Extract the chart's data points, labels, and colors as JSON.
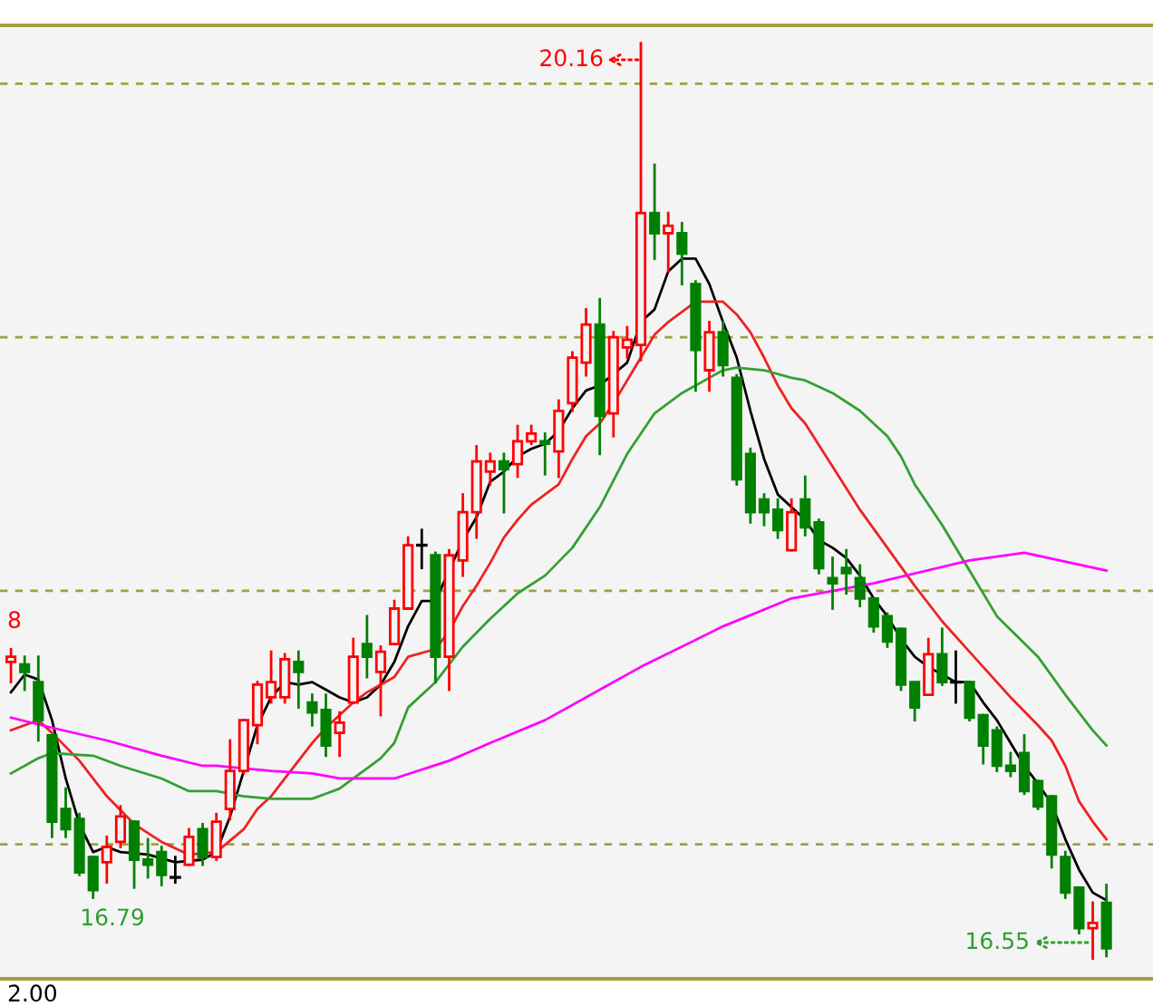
{
  "chart_data": {
    "type": "candlestick",
    "categories": [
      null,
      null,
      null,
      null,
      null,
      null,
      null,
      null,
      null,
      null,
      null,
      null,
      null,
      null,
      null,
      null,
      null,
      null,
      null,
      null,
      null,
      null,
      null,
      null,
      null,
      null,
      null,
      null,
      null,
      null,
      null,
      null,
      null,
      null,
      null,
      null,
      null,
      null,
      null,
      null,
      null,
      null,
      null,
      null,
      null,
      null,
      null,
      null,
      null,
      null,
      null,
      null,
      null,
      null,
      null,
      null,
      null,
      null,
      null,
      null,
      null,
      null,
      null,
      null,
      null,
      null,
      null,
      null,
      null,
      null,
      null,
      null,
      null,
      null,
      null,
      null,
      null,
      null,
      null,
      null,
      null
    ],
    "ohlc": [
      [
        17.72,
        17.77,
        17.64,
        17.74
      ],
      [
        17.71,
        17.74,
        17.61,
        17.68
      ],
      [
        17.64,
        17.74,
        17.41,
        17.49
      ],
      [
        17.43,
        17.43,
        17.03,
        17.09
      ],
      [
        17.14,
        17.22,
        17.03,
        17.06
      ],
      [
        17.1,
        17.12,
        16.88,
        16.89
      ],
      [
        16.95,
        16.95,
        16.79,
        16.82
      ],
      [
        16.93,
        17.03,
        16.85,
        16.99
      ],
      [
        17.01,
        17.15,
        16.99,
        17.11
      ],
      [
        17.09,
        17.09,
        16.83,
        16.94
      ],
      [
        16.94,
        17.02,
        16.87,
        16.92
      ],
      [
        16.97,
        16.99,
        16.84,
        16.88
      ],
      [
        16.87,
        16.95,
        16.85,
        16.87
      ],
      [
        16.92,
        17.06,
        16.92,
        17.03
      ],
      [
        17.06,
        17.08,
        16.92,
        16.95
      ],
      [
        16.95,
        17.12,
        16.94,
        17.09
      ],
      [
        17.14,
        17.41,
        17.1,
        17.29
      ],
      [
        17.29,
        17.49,
        17.28,
        17.49
      ],
      [
        17.47,
        17.64,
        17.4,
        17.63
      ],
      [
        17.58,
        17.76,
        17.56,
        17.64
      ],
      [
        17.58,
        17.75,
        17.56,
        17.73
      ],
      [
        17.72,
        17.76,
        17.54,
        17.68
      ],
      [
        17.56,
        17.59,
        17.47,
        17.52
      ],
      [
        17.53,
        17.59,
        17.35,
        17.39
      ],
      [
        17.44,
        17.52,
        17.35,
        17.48
      ],
      [
        17.56,
        17.81,
        17.56,
        17.74
      ],
      [
        17.79,
        17.9,
        17.66,
        17.74
      ],
      [
        17.68,
        17.78,
        17.51,
        17.76
      ],
      [
        17.79,
        17.96,
        17.79,
        17.93
      ],
      [
        17.93,
        18.21,
        17.93,
        18.18
      ],
      [
        18.18,
        18.24,
        18.09,
        18.18
      ],
      [
        18.14,
        18.15,
        17.64,
        17.74
      ],
      [
        17.74,
        18.16,
        17.61,
        18.14
      ],
      [
        18.12,
        18.38,
        18.06,
        18.31
      ],
      [
        18.31,
        18.57,
        18.21,
        18.51
      ],
      [
        18.47,
        18.54,
        18.42,
        18.51
      ],
      [
        18.51,
        18.54,
        18.31,
        18.48
      ],
      [
        18.5,
        18.65,
        18.45,
        18.59
      ],
      [
        18.59,
        18.65,
        18.58,
        18.62
      ],
      [
        18.59,
        18.62,
        18.46,
        18.58
      ],
      [
        18.55,
        18.75,
        18.45,
        18.71
      ],
      [
        18.74,
        18.94,
        18.71,
        18.92
      ],
      [
        18.9,
        19.11,
        18.85,
        19.05
      ],
      [
        19.05,
        19.15,
        18.54,
        18.69
      ],
      [
        18.7,
        19.02,
        18.61,
        19.0
      ],
      [
        18.96,
        19.04,
        18.92,
        18.99
      ],
      [
        18.97,
        20.16,
        18.91,
        19.49
      ],
      [
        19.49,
        19.68,
        19.31,
        19.41
      ],
      [
        19.41,
        19.49,
        19.26,
        19.44
      ],
      [
        19.41,
        19.45,
        19.21,
        19.33
      ],
      [
        19.21,
        19.22,
        18.79,
        18.95
      ],
      [
        18.87,
        19.06,
        18.79,
        19.02
      ],
      [
        19.02,
        19.06,
        18.85,
        18.89
      ],
      [
        18.84,
        18.85,
        18.42,
        18.44
      ],
      [
        18.54,
        18.56,
        18.27,
        18.31
      ],
      [
        18.36,
        18.38,
        18.26,
        18.31
      ],
      [
        18.32,
        18.36,
        18.21,
        18.24
      ],
      [
        18.16,
        18.36,
        18.16,
        18.31
      ],
      [
        18.36,
        18.45,
        18.22,
        18.25
      ],
      [
        18.27,
        18.28,
        18.07,
        18.09
      ],
      [
        18.05,
        18.13,
        17.93,
        18.03
      ],
      [
        18.09,
        18.16,
        17.99,
        18.07
      ],
      [
        18.05,
        18.1,
        17.94,
        17.97
      ],
      [
        17.97,
        17.97,
        17.84,
        17.86
      ],
      [
        17.9,
        17.91,
        17.78,
        17.8
      ],
      [
        17.85,
        17.85,
        17.61,
        17.63
      ],
      [
        17.64,
        17.64,
        17.49,
        17.54
      ],
      [
        17.59,
        17.81,
        17.59,
        17.75
      ],
      [
        17.75,
        17.85,
        17.63,
        17.64
      ],
      [
        17.64,
        17.76,
        17.56,
        17.64
      ],
      [
        17.64,
        17.64,
        17.49,
        17.5
      ],
      [
        17.51,
        17.51,
        17.32,
        17.39
      ],
      [
        17.45,
        17.46,
        17.29,
        17.31
      ],
      [
        17.31,
        17.36,
        17.27,
        17.29
      ],
      [
        17.36,
        17.43,
        17.2,
        17.21
      ],
      [
        17.25,
        17.25,
        17.14,
        17.15
      ],
      [
        17.19,
        17.19,
        16.91,
        16.96
      ],
      [
        16.95,
        16.97,
        16.79,
        16.81
      ],
      [
        16.83,
        16.83,
        16.65,
        16.67
      ],
      [
        16.67,
        16.77,
        16.55,
        16.69
      ],
      [
        16.77,
        16.84,
        16.56,
        16.59
      ]
    ],
    "colors": [
      "#ff0000",
      "#008000",
      "#008000",
      "#008000",
      "#008000",
      "#008000",
      "#008000",
      "#ff0000",
      "#ff0000",
      "#008000",
      "#008000",
      "#008000",
      "#000000",
      "#ff0000",
      "#008000",
      "#ff0000",
      "#ff0000",
      "#ff0000",
      "#ff0000",
      "#ff0000",
      "#ff0000",
      "#008000",
      "#008000",
      "#008000",
      "#ff0000",
      "#ff0000",
      "#008000",
      "#ff0000",
      "#ff0000",
      "#ff0000",
      "#000000",
      "#008000",
      "#ff0000",
      "#ff0000",
      "#ff0000",
      "#ff0000",
      "#008000",
      "#ff0000",
      "#ff0000",
      "#008000",
      "#ff0000",
      "#ff0000",
      "#ff0000",
      "#008000",
      "#ff0000",
      "#ff0000",
      "#ff0000",
      "#008000",
      "#ff0000",
      "#008000",
      "#008000",
      "#ff0000",
      "#008000",
      "#008000",
      "#008000",
      "#008000",
      "#008000",
      "#ff0000",
      "#008000",
      "#008000",
      "#008000",
      "#008000",
      "#008000",
      "#008000",
      "#008000",
      "#008000",
      "#008000",
      "#ff0000",
      "#008000",
      "#000000",
      "#008000",
      "#008000",
      "#008000",
      "#008000",
      "#008000",
      "#008000",
      "#008000",
      "#008000",
      "#008000",
      "#ff0000",
      "#008000"
    ],
    "series": [
      {
        "type": "line",
        "color": "#000000",
        "values": [
          17.6,
          17.67,
          17.65,
          17.49,
          17.26,
          17.08,
          16.97,
          16.99,
          16.97,
          null,
          16.96,
          null,
          16.93,
          null,
          16.94,
          16.97,
          17.11,
          17.29,
          17.47,
          17.58,
          17.64,
          17.63,
          17.64,
          17.61,
          17.58,
          17.56,
          17.58,
          17.63,
          17.72,
          17.86,
          17.96,
          17.96,
          null,
          18.2,
          18.29,
          18.43,
          18.47,
          18.53,
          18.56,
          18.58,
          18.63,
          18.72,
          18.79,
          18.81,
          null,
          18.9,
          19.06,
          19.11,
          19.26,
          19.31,
          19.31,
          19.21,
          19.06,
          18.92,
          18.71,
          18.52,
          18.38,
          18.33,
          18.28,
          18.2,
          18.17,
          18.13,
          18.06,
          17.97,
          17.9,
          17.81,
          17.74,
          17.7,
          17.67,
          17.64,
          17.64,
          17.56,
          17.49,
          17.4,
          17.31,
          17.24,
          17.16,
          17.02,
          16.9,
          16.81,
          16.78
        ]
      },
      {
        "type": "line",
        "color": "#ee2222",
        "values": [
          17.45,
          null,
          17.49,
          17.44,
          null,
          17.33,
          null,
          17.19,
          null,
          17.08,
          null,
          17.01,
          null,
          16.96,
          null,
          16.97,
          null,
          17.06,
          17.14,
          17.19,
          17.26,
          17.33,
          17.4,
          17.46,
          17.51,
          17.56,
          17.6,
          17.63,
          17.66,
          17.74,
          null,
          17.77,
          17.84,
          17.94,
          18.02,
          18.11,
          18.21,
          18.28,
          18.34,
          18.38,
          18.42,
          18.52,
          18.61,
          18.66,
          18.74,
          18.83,
          18.92,
          19.01,
          19.06,
          19.1,
          19.14,
          19.14,
          19.14,
          19.09,
          19.02,
          18.92,
          18.81,
          18.72,
          18.66,
          null,
          18.49,
          null,
          18.32,
          null,
          18.17,
          null,
          18.02,
          null,
          17.88,
          null,
          17.76,
          17.7,
          null,
          17.58,
          null,
          17.47,
          17.41,
          17.31,
          17.17,
          17.09,
          17.02
        ]
      },
      {
        "type": "line",
        "color": "#33a033",
        "values": [
          17.28,
          null,
          17.34,
          17.36,
          null,
          null,
          17.35,
          null,
          17.31,
          null,
          null,
          17.26,
          null,
          17.21,
          17.21,
          17.21,
          null,
          17.19,
          null,
          17.18,
          null,
          17.18,
          17.18,
          17.2,
          17.22,
          17.26,
          17.3,
          17.34,
          17.4,
          17.54,
          null,
          17.64,
          null,
          17.78,
          null,
          17.89,
          null,
          17.99,
          null,
          18.06,
          null,
          18.17,
          null,
          18.33,
          null,
          18.54,
          null,
          18.7,
          null,
          18.78,
          null,
          18.84,
          18.87,
          18.88,
          null,
          18.87,
          null,
          18.84,
          18.83,
          null,
          18.78,
          null,
          18.71,
          null,
          18.61,
          18.53,
          18.42,
          null,
          18.26,
          null,
          18.08,
          null,
          17.9,
          null,
          null,
          17.74,
          null,
          17.59,
          null,
          17.45,
          17.39
        ]
      },
      {
        "type": "line",
        "color": "#ff00ff",
        "values": [
          17.5,
          null,
          null,
          17.46,
          null,
          null,
          null,
          17.41,
          null,
          null,
          null,
          17.35,
          null,
          null,
          17.31,
          17.31,
          null,
          null,
          null,
          17.29,
          null,
          null,
          17.28,
          null,
          17.26,
          null,
          null,
          null,
          17.26,
          null,
          null,
          null,
          17.33,
          null,
          null,
          17.4,
          null,
          null,
          null,
          17.49,
          null,
          null,
          null,
          17.61,
          null,
          null,
          17.7,
          null,
          null,
          null,
          null,
          null,
          17.86,
          null,
          null,
          null,
          null,
          17.97,
          null,
          null,
          null,
          null,
          null,
          18.03,
          null,
          null,
          null,
          null,
          null,
          null,
          18.12,
          null,
          null,
          null,
          18.15,
          null,
          null,
          null,
          null,
          null,
          18.08
        ]
      }
    ],
    "ylim": [
      16.47,
      20.23
    ],
    "yticks": [
      {
        "value": 17,
        "label": null
      },
      {
        "value": 18,
        "label": null
      },
      {
        "value": 19,
        "label": null
      },
      {
        "value": 20,
        "label": null
      }
    ],
    "grid": "y",
    "annotations": [
      "20.16",
      "16.79",
      "16.55",
      "8",
      "2.00"
    ]
  }
}
